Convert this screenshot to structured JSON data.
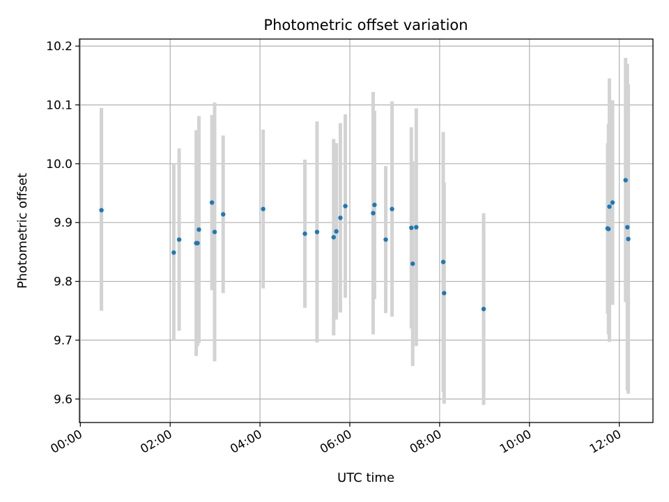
{
  "chart_data": {
    "type": "scatter",
    "title": "Photometric offset variation",
    "xlabel": "UTC time",
    "ylabel": "Photometric offset",
    "xlim_hours": [
      -0.02,
      12.75
    ],
    "ylim": [
      9.56,
      10.212
    ],
    "x_ticks": [
      {
        "hour": 0,
        "label": "00:00"
      },
      {
        "hour": 2,
        "label": "02:00"
      },
      {
        "hour": 4,
        "label": "04:00"
      },
      {
        "hour": 6,
        "label": "06:00"
      },
      {
        "hour": 8,
        "label": "08:00"
      },
      {
        "hour": 10,
        "label": "10:00"
      },
      {
        "hour": 12,
        "label": "12:00"
      }
    ],
    "y_ticks": [
      {
        "value": 9.6,
        "label": "9.6"
      },
      {
        "value": 9.7,
        "label": "9.7"
      },
      {
        "value": 9.8,
        "label": "9.8"
      },
      {
        "value": 9.9,
        "label": "9.9"
      },
      {
        "value": 10.0,
        "label": "10.0"
      },
      {
        "value": 10.1,
        "label": "10.1"
      },
      {
        "value": 10.2,
        "label": "10.2"
      }
    ],
    "grid": true,
    "marker_color": "#1f77b4",
    "errorbar_color": "#d3d3d3",
    "points": [
      {
        "t": 0.47,
        "y": 9.921,
        "lo": 9.75,
        "hi": 10.095
      },
      {
        "t": 2.08,
        "y": 9.849,
        "lo": 9.7,
        "hi": 10.0
      },
      {
        "t": 2.2,
        "y": 9.871,
        "lo": 9.716,
        "hi": 10.026
      },
      {
        "t": 2.58,
        "y": 9.865,
        "lo": 9.673,
        "hi": 10.057
      },
      {
        "t": 2.61,
        "y": 9.865,
        "lo": 9.69,
        "hi": 10.04
      },
      {
        "t": 2.64,
        "y": 9.888,
        "lo": 9.695,
        "hi": 10.081
      },
      {
        "t": 2.93,
        "y": 9.934,
        "lo": 9.785,
        "hi": 10.083
      },
      {
        "t": 2.99,
        "y": 9.884,
        "lo": 9.664,
        "hi": 10.104
      },
      {
        "t": 3.18,
        "y": 9.914,
        "lo": 9.78,
        "hi": 10.048
      },
      {
        "t": 4.07,
        "y": 9.923,
        "lo": 9.788,
        "hi": 10.058
      },
      {
        "t": 5.0,
        "y": 9.881,
        "lo": 9.755,
        "hi": 10.007
      },
      {
        "t": 5.27,
        "y": 9.884,
        "lo": 9.696,
        "hi": 10.072
      },
      {
        "t": 5.64,
        "y": 9.875,
        "lo": 9.708,
        "hi": 10.042
      },
      {
        "t": 5.7,
        "y": 9.885,
        "lo": 9.735,
        "hi": 10.035
      },
      {
        "t": 5.79,
        "y": 9.908,
        "lo": 9.747,
        "hi": 10.069
      },
      {
        "t": 5.9,
        "y": 9.928,
        "lo": 9.772,
        "hi": 10.084
      },
      {
        "t": 6.52,
        "y": 9.916,
        "lo": 9.71,
        "hi": 10.122
      },
      {
        "t": 6.55,
        "y": 9.93,
        "lo": 9.77,
        "hi": 10.09
      },
      {
        "t": 6.8,
        "y": 9.871,
        "lo": 9.746,
        "hi": 9.996
      },
      {
        "t": 6.94,
        "y": 9.923,
        "lo": 9.74,
        "hi": 10.106
      },
      {
        "t": 7.37,
        "y": 9.891,
        "lo": 9.72,
        "hi": 10.062
      },
      {
        "t": 7.4,
        "y": 9.83,
        "lo": 9.656,
        "hi": 10.004
      },
      {
        "t": 7.48,
        "y": 9.892,
        "lo": 9.69,
        "hi": 10.094
      },
      {
        "t": 8.08,
        "y": 9.833,
        "lo": 9.612,
        "hi": 10.054
      },
      {
        "t": 8.1,
        "y": 9.78,
        "lo": 9.592,
        "hi": 9.968
      },
      {
        "t": 8.98,
        "y": 9.753,
        "lo": 9.59,
        "hi": 9.916
      },
      {
        "t": 11.74,
        "y": 9.89,
        "lo": 9.745,
        "hi": 10.035
      },
      {
        "t": 11.76,
        "y": 9.889,
        "lo": 9.71,
        "hi": 10.068
      },
      {
        "t": 11.78,
        "y": 9.927,
        "lo": 9.697,
        "hi": 10.145
      },
      {
        "t": 11.85,
        "y": 9.934,
        "lo": 9.76,
        "hi": 10.108
      },
      {
        "t": 12.14,
        "y": 9.972,
        "lo": 9.765,
        "hi": 10.18
      },
      {
        "t": 12.18,
        "y": 9.892,
        "lo": 9.615,
        "hi": 10.17
      },
      {
        "t": 12.2,
        "y": 9.872,
        "lo": 9.609,
        "hi": 10.135
      }
    ]
  }
}
